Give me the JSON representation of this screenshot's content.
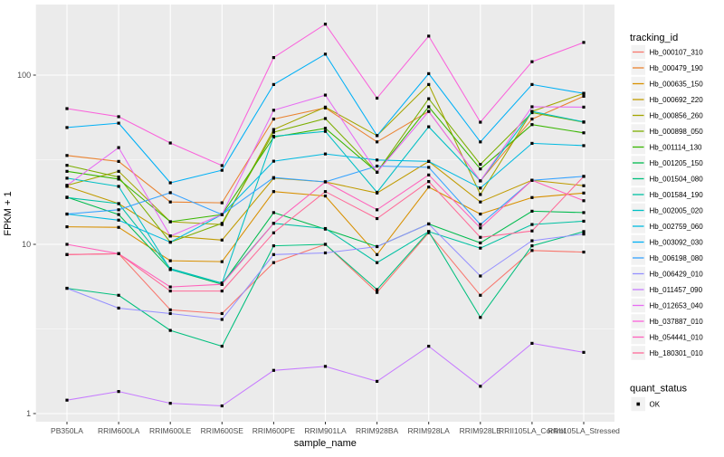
{
  "figure": {
    "panel_bg": "#EBEBEB",
    "grid_color": "#FFFFFF",
    "axis_text_color": "#4D4D4D",
    "axis_title_color": "#000000",
    "marker_color": "#000000",
    "legend_key_bg": "#F2F2F2",
    "x_axis_title": "sample_name",
    "y_axis_title": "FPKM + 1",
    "legend_title": "tracking_id",
    "quant_legend_title": "quant_status",
    "quant_legend_items": [
      {
        "label": "OK",
        "marker": "black-square"
      }
    ]
  },
  "chart_data": {
    "type": "line",
    "xlabel": "sample_name",
    "ylabel": "FPKM + 1",
    "yscale": "log10",
    "ylim": [
      1,
      250
    ],
    "yticks": [
      1,
      10,
      100
    ],
    "ytick_labels": [
      "1",
      "10",
      "100"
    ],
    "yminor": [
      3.162,
      31.62
    ],
    "grid": true,
    "legend_position": "right",
    "marker": "black-square",
    "categories": [
      "PB350LA",
      "RRIM600LA",
      "RRIM600LE",
      "RRIM600SE",
      "RRIM600PE",
      "RRIM901LA",
      "RRIM928BA",
      "RRIM928LA",
      "RRIM928LE",
      "RRII105LA_Control",
      "RRII105LA_Stressed"
    ],
    "series": [
      {
        "name": "Hb_000107_310",
        "color": "#F8766D",
        "quant_status": "OK",
        "values": [
          8.7,
          8.8,
          4.1,
          3.9,
          7.8,
          10.0,
          5.2,
          11.7,
          5.0,
          9.2,
          9.0
        ]
      },
      {
        "name": "Hb_000479_190",
        "color": "#EA8331",
        "quant_status": "OK",
        "values": [
          33.5,
          30.9,
          17.8,
          17.6,
          55.0,
          64.0,
          40.3,
          61.0,
          23.7,
          55.0,
          75.0
        ]
      },
      {
        "name": "Hb_000635_150",
        "color": "#D89000",
        "quant_status": "OK",
        "values": [
          12.7,
          12.6,
          8.0,
          7.9,
          20.5,
          19.3,
          8.7,
          21.8,
          15.1,
          18.9,
          20.1
        ]
      },
      {
        "name": "Hb_000692_220",
        "color": "#C09B00",
        "quant_status": "OK",
        "values": [
          22.0,
          17.4,
          11.2,
          10.6,
          24.6,
          23.4,
          20.1,
          30.9,
          17.8,
          23.9,
          22.2
        ]
      },
      {
        "name": "Hb_000856_260",
        "color": "#A3A500",
        "quant_status": "OK",
        "values": [
          22.3,
          27.0,
          13.6,
          13.1,
          47.7,
          64.7,
          43.9,
          88.0,
          19.7,
          61.0,
          78.0
        ]
      },
      {
        "name": "Hb_000898_050",
        "color": "#7CAE00",
        "quant_status": "OK",
        "values": [
          29.3,
          25.0,
          10.3,
          13.3,
          46.0,
          55.4,
          26.7,
          72.5,
          29.7,
          60.0,
          52.7
        ]
      },
      {
        "name": "Hb_001114_130",
        "color": "#39B600",
        "quant_status": "OK",
        "values": [
          27.0,
          24.3,
          13.6,
          15.0,
          43.0,
          48.5,
          26.7,
          65.0,
          27.9,
          51.0,
          45.6
        ]
      },
      {
        "name": "Hb_001205_150",
        "color": "#00BB4E",
        "quant_status": "OK",
        "values": [
          19.0,
          15.0,
          7.1,
          5.8,
          15.4,
          12.3,
          9.7,
          13.2,
          10.2,
          15.7,
          15.4
        ]
      },
      {
        "name": "Hb_001504_080",
        "color": "#00BF7D",
        "quant_status": "OK",
        "values": [
          5.5,
          5.0,
          3.1,
          2.5,
          9.8,
          10.0,
          5.4,
          11.9,
          3.7,
          9.8,
          11.9
        ]
      },
      {
        "name": "Hb_001584_190",
        "color": "#00C1A3",
        "quant_status": "OK",
        "values": [
          18.9,
          17.4,
          7.2,
          5.9,
          13.3,
          12.4,
          7.8,
          11.9,
          9.5,
          13.1,
          13.7
        ]
      },
      {
        "name": "Hb_002005_020",
        "color": "#00BFC4",
        "quant_status": "OK",
        "values": [
          24.6,
          22.0,
          7.1,
          5.9,
          43.5,
          46.5,
          20.3,
          49.5,
          23.7,
          61.0,
          52.9
        ]
      },
      {
        "name": "Hb_002759_060",
        "color": "#00BAE0",
        "quant_status": "OK",
        "values": [
          15.1,
          13.9,
          10.3,
          15.0,
          31.0,
          34.2,
          31.5,
          30.9,
          21.5,
          39.5,
          38.3
        ]
      },
      {
        "name": "Hb_003092_030",
        "color": "#00B0F6",
        "quant_status": "OK",
        "values": [
          49.0,
          52.0,
          23.1,
          27.4,
          88.0,
          133.0,
          43.9,
          102.0,
          40.3,
          88.0,
          78.0
        ]
      },
      {
        "name": "Hb_006198_080",
        "color": "#35A2FF",
        "quant_status": "OK",
        "values": [
          15.1,
          16.0,
          20.2,
          15.0,
          24.8,
          23.4,
          29.0,
          28.5,
          13.1,
          23.9,
          25.2
        ]
      },
      {
        "name": "Hb_006429_010",
        "color": "#9590FF",
        "quant_status": "OK",
        "values": [
          5.5,
          4.2,
          3.9,
          3.6,
          8.7,
          8.9,
          9.7,
          13.2,
          6.5,
          10.5,
          11.5
        ]
      },
      {
        "name": "Hb_011457_090",
        "color": "#C77CFF",
        "quant_status": "OK",
        "values": [
          1.2,
          1.35,
          1.15,
          1.11,
          1.8,
          1.9,
          1.55,
          2.5,
          1.45,
          2.6,
          2.3
        ]
      },
      {
        "name": "Hb_012653_040",
        "color": "#E76BF3",
        "quant_status": "OK",
        "values": [
          22.3,
          37.3,
          11.2,
          15.0,
          62.0,
          76.2,
          26.7,
          61.0,
          23.7,
          65.0,
          64.7
        ]
      },
      {
        "name": "Hb_037887_010",
        "color": "#FA62DB",
        "quant_status": "OK",
        "values": [
          63.4,
          56.8,
          39.7,
          29.2,
          127.0,
          200.0,
          73.1,
          170.0,
          52.7,
          120.0,
          156.0
        ]
      },
      {
        "name": "Hb_054441_010",
        "color": "#FF62BC",
        "quant_status": "OK",
        "values": [
          10.0,
          8.8,
          5.6,
          5.8,
          13.3,
          23.4,
          16.0,
          25.7,
          12.5,
          23.9,
          18.1
        ]
      },
      {
        "name": "Hb_180301_010",
        "color": "#FF6A98",
        "quant_status": "OK",
        "values": [
          8.7,
          8.8,
          5.3,
          5.3,
          11.7,
          20.5,
          14.2,
          23.5,
          11.0,
          12.0,
          25.2
        ]
      }
    ]
  }
}
